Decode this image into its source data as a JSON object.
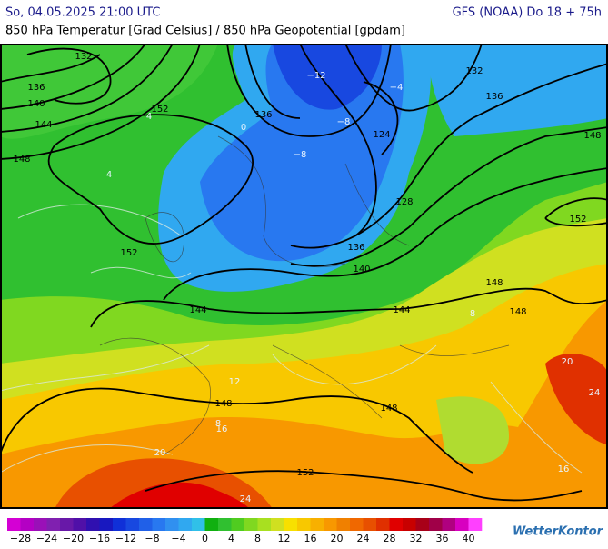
{
  "header": {
    "left": "So, 04.05.2025 21:00 UTC",
    "right": "GFS (NOAA) Do 18 + 75h",
    "subtitle": "850 hPa Temperatur [Grad Celsius] / 850 hPa Geopotential [gpdam]"
  },
  "map": {
    "geopotential_labels": [
      "132",
      "136",
      "140",
      "144",
      "148",
      "152",
      "152",
      "136",
      "124",
      "128",
      "136",
      "140",
      "132",
      "136",
      "148",
      "152",
      "148",
      "144",
      "148",
      "144",
      "148",
      "148",
      "152"
    ],
    "temperature_labels": [
      "−12",
      "−8",
      "−8",
      "−4",
      "0",
      "4",
      "4",
      "8",
      "12",
      "16",
      "20",
      "24",
      "20",
      "24",
      "16",
      "8"
    ]
  },
  "colorbar": {
    "colors": [
      "#d400d4",
      "#b400c4",
      "#9a10b8",
      "#8020b0",
      "#6818a8",
      "#5010a8",
      "#3010b0",
      "#1818c0",
      "#1030d8",
      "#1848e0",
      "#2060e8",
      "#2878f0",
      "#3090f0",
      "#30a8f0",
      "#30c0e8",
      "#10b010",
      "#30c030",
      "#50cc20",
      "#80d820",
      "#a8e020",
      "#d0e020",
      "#f8e000",
      "#f8c800",
      "#f8b000",
      "#f89800",
      "#f08000",
      "#f06800",
      "#e85000",
      "#e03000",
      "#e00000",
      "#c80000",
      "#a80018",
      "#a00048",
      "#b00080",
      "#d800c0",
      "#ff40ff"
    ],
    "labels": [
      "−28",
      "−24",
      "−20",
      "−16",
      "−12",
      "−8",
      "−4",
      "0",
      "4",
      "8",
      "12",
      "16",
      "20",
      "24",
      "28",
      "32",
      "36",
      "40"
    ]
  },
  "logo": "WetterKontor"
}
